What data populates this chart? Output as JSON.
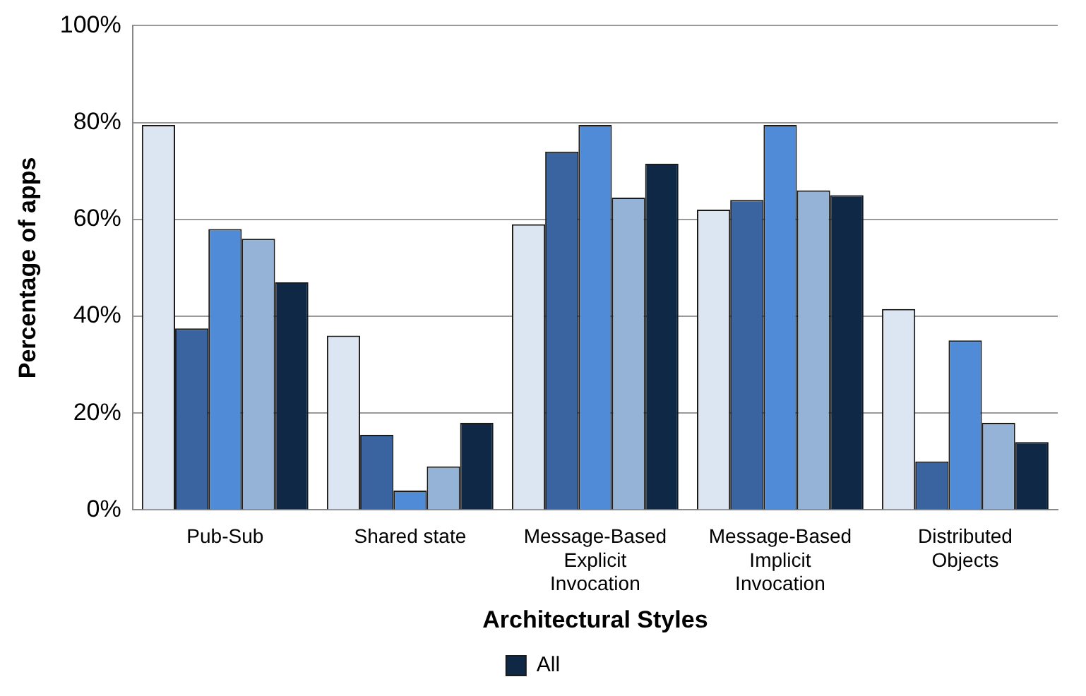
{
  "chart_data": {
    "type": "bar",
    "xlabel": "Architectural Styles",
    "ylabel": "Percentage of apps",
    "categories": [
      "Pub-Sub",
      "Shared state",
      "Message-Based Explicit Invocation",
      "Message-Based Implicit Invocation",
      "Distributed Objects"
    ],
    "series": [
      {
        "color": "#dce6f2",
        "values": [
          79.5,
          36,
          59,
          62,
          41.5
        ]
      },
      {
        "color": "#3a64a0",
        "values": [
          37.5,
          15.5,
          74,
          64,
          10
        ]
      },
      {
        "color": "#4f8bd6",
        "values": [
          58,
          4,
          79.5,
          79.5,
          35
        ]
      },
      {
        "color": "#95b3d7",
        "values": [
          56,
          9,
          64.5,
          66,
          18
        ]
      },
      {
        "name": "All",
        "color": "#0f2845",
        "values": [
          47,
          18,
          71.5,
          65,
          14
        ]
      }
    ],
    "ylim": [
      0,
      100
    ],
    "yticks": [
      {
        "value": 0,
        "label": "0%"
      },
      {
        "value": 20,
        "label": "20%"
      },
      {
        "value": 40,
        "label": "40%"
      },
      {
        "value": 60,
        "label": "60%"
      },
      {
        "value": 80,
        "label": "80%"
      },
      {
        "value": 100,
        "label": "100%"
      }
    ],
    "grid": "y",
    "legend": "bottom"
  }
}
